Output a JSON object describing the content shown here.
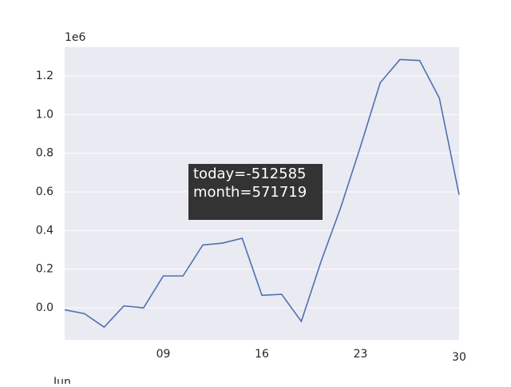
{
  "chart_data": {
    "type": "line",
    "y_offset_label": "1e6",
    "x_month_label": "Jun",
    "categories": [
      null,
      null,
      null,
      null,
      null,
      "09",
      null,
      null,
      null,
      null,
      "16",
      null,
      null,
      null,
      null,
      "23",
      null,
      null,
      null,
      null,
      "30"
    ],
    "values": [
      -0.01,
      -0.03,
      -0.1,
      0.01,
      0.0,
      0.165,
      0.165,
      0.325,
      0.335,
      0.36,
      0.065,
      0.07,
      -0.07,
      0.24,
      0.52,
      0.835,
      1.165,
      1.285,
      1.28,
      1.085,
      0.585
    ],
    "color": "#4c72b0",
    "ylim": [
      -0.1655,
      1.349
    ],
    "yticks": [
      {
        "value": 0,
        "label": "0.0"
      },
      0.2,
      0.4,
      0.6,
      0.8,
      {
        "value": 1,
        "label": "1.0"
      },
      1.2
    ],
    "grid": true,
    "annotation": [
      "today=-512585",
      "month=571719"
    ]
  }
}
